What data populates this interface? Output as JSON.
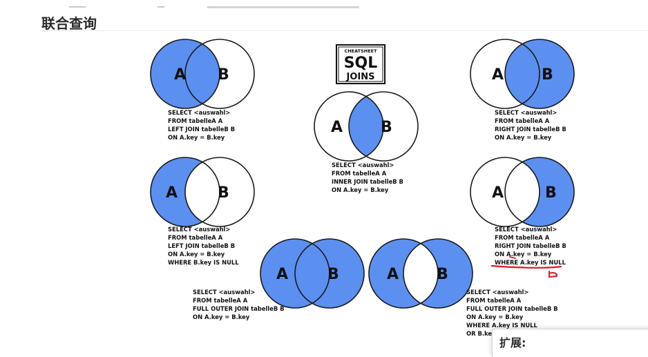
{
  "page": {
    "heading": "联合查询",
    "extension_label": "扩展:"
  },
  "badge": {
    "top": "CHEATSHEET",
    "main": "SQL",
    "bottom": "JOINS"
  },
  "circle_labels": {
    "a": "A",
    "b": "B"
  },
  "colors": {
    "fill": "#5b8ff0",
    "stroke": "#1a1a1a",
    "annotation": "#e0162b"
  },
  "joins": {
    "left": [
      "SELECT <auswahl>",
      "FROM tabelleA A",
      "LEFT JOIN tabelleB B",
      "ON A.key = B.key"
    ],
    "inner": [
      "SELECT <auswahl>",
      "FROM tabelleA A",
      "INNER JOIN tabelleB B",
      "ON A.key = B.key"
    ],
    "right": [
      "SELECT <auswahl>",
      "FROM tabelleA A",
      "RIGHT JOIN tabelleB B",
      "ON A.key = B.key"
    ],
    "left_excl": [
      "SELECT <auswahl>",
      "FROM tabelleA A",
      "LEFT JOIN tabelleB B",
      "ON A.key = B.key",
      "WHERE B.key IS NULL"
    ],
    "right_excl": [
      "SELECT <auswahl>",
      "FROM tabelleA A",
      "RIGHT JOIN tabelleB B",
      "ON A.key = B.key",
      "WHERE A.key IS NULL"
    ],
    "full": [
      "SELECT <auswahl>",
      "FROM tabelleA A",
      "FULL OUTER JOIN tabelleB B",
      "ON A.key = B.key"
    ],
    "full_excl": [
      "SELECT <auswahl>",
      "FROM tabelleA A",
      "FULL OUTER JOIN tabelleB B",
      "ON A.key = B.key",
      "WHERE A.key IS NULL",
      "OR B.key IS NULL"
    ]
  }
}
